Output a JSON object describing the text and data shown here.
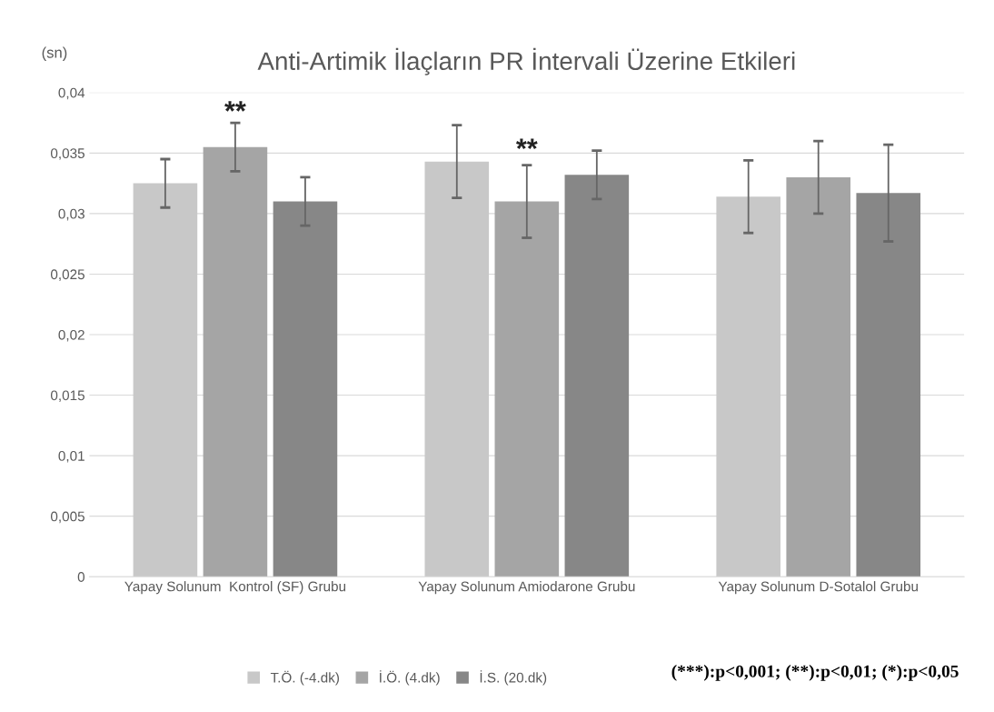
{
  "chart_data": {
    "type": "bar",
    "title": "Anti-Artimik İlaçların PR İntervali Üzerine Etkileri",
    "ylabel": "(sn)",
    "categories": [
      "Yapay Solunum  Kontrol (SF) Grubu",
      "Yapay Solunum Amiodarone Grubu",
      "Yapay Solunum D-Sotalol Grubu"
    ],
    "series": [
      {
        "name": "T.Ö. (-4.dk)",
        "color": "#c8c8c8",
        "values": [
          0.0325,
          0.0343,
          0.0314
        ],
        "errors": [
          0.002,
          0.003,
          0.003
        ]
      },
      {
        "name": "İ.Ö. (4.dk)",
        "color": "#a5a5a5",
        "values": [
          0.0355,
          0.031,
          0.033
        ],
        "errors": [
          0.002,
          0.003,
          0.003
        ]
      },
      {
        "name": "İ.S. (20.dk)",
        "color": "#878787",
        "values": [
          0.031,
          0.0332,
          0.0317
        ],
        "errors": [
          0.002,
          0.002,
          0.004
        ]
      }
    ],
    "ylim": [
      0,
      0.04
    ],
    "yticks": [
      {
        "value": 0,
        "label": "0"
      },
      {
        "value": 0.005,
        "label": "0,005"
      },
      {
        "value": 0.01,
        "label": "0,01"
      },
      {
        "value": 0.015,
        "label": "0,015"
      },
      {
        "value": 0.02,
        "label": "0,02"
      },
      {
        "value": 0.025,
        "label": "0,025"
      },
      {
        "value": 0.03,
        "label": "0,03"
      },
      {
        "value": 0.035,
        "label": "0,035"
      },
      {
        "value": 0.04,
        "label": "0,04"
      }
    ],
    "grid": "y",
    "legend": "bottom",
    "annotations": [
      "**",
      "**",
      "(***):p<0,001; (**):p<0,01; (*):p<0,05"
    ]
  }
}
